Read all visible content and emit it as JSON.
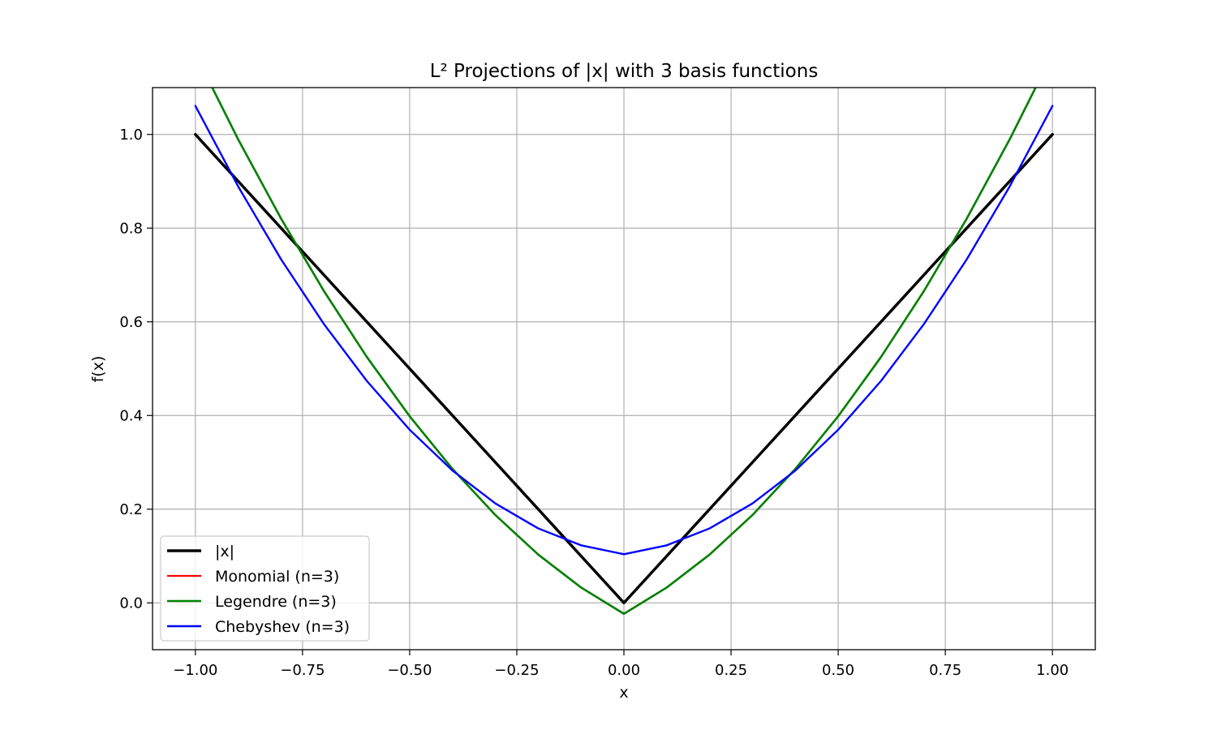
{
  "chart_data": {
    "type": "line",
    "title": "L² Projections of |x| with 3 basis functions",
    "xlabel": "x",
    "ylabel": "f(x)",
    "xlim": [
      -1.1,
      1.1
    ],
    "ylim": [
      -0.1,
      1.1
    ],
    "xticks": [
      -1.0,
      -0.75,
      -0.5,
      -0.25,
      0.0,
      0.25,
      0.5,
      0.75,
      1.0
    ],
    "xtick_labels": [
      "−1.00",
      "−0.75",
      "−0.50",
      "−0.25",
      "0.00",
      "0.25",
      "0.50",
      "0.75",
      "1.00"
    ],
    "yticks": [
      0.0,
      0.2,
      0.4,
      0.6,
      0.8,
      1.0
    ],
    "ytick_labels": [
      "0.0",
      "0.2",
      "0.4",
      "0.6",
      "0.8",
      "1.0"
    ],
    "grid": true,
    "legend_position": "lower-left",
    "x": [
      -1.0,
      -0.9,
      -0.8,
      -0.7,
      -0.6,
      -0.5,
      -0.4,
      -0.3,
      -0.2,
      -0.1,
      0.0,
      0.1,
      0.2,
      0.3,
      0.4,
      0.5,
      0.6,
      0.7,
      0.8,
      0.9,
      1.0
    ],
    "series": [
      {
        "name": "|x|",
        "color": "#000000",
        "values": [
          1.0,
          0.9,
          0.8,
          0.7,
          0.6,
          0.5,
          0.4,
          0.3,
          0.2,
          0.1,
          0.0,
          0.1,
          0.2,
          0.3,
          0.4,
          0.5,
          0.6,
          0.7,
          0.8,
          0.9,
          1.0
        ]
      },
      {
        "name": "Monomial (n=3)",
        "color": "#ff0000",
        "values": [
          1.1719,
          0.9891,
          0.8203,
          0.6656,
          0.525,
          0.3984,
          0.2859,
          0.1875,
          0.1031,
          0.0328,
          -0.0234,
          0.0328,
          0.1031,
          0.1875,
          0.2859,
          0.3984,
          0.525,
          0.6656,
          0.8203,
          0.9891,
          1.1719
        ]
      },
      {
        "name": "Legendre (n=3)",
        "color": "#008000",
        "values": [
          1.1719,
          0.9891,
          0.8203,
          0.6656,
          0.525,
          0.3984,
          0.2859,
          0.1875,
          0.1031,
          0.0328,
          -0.0234,
          0.0328,
          0.1031,
          0.1875,
          0.2859,
          0.3984,
          0.525,
          0.6656,
          0.8203,
          0.9891,
          1.1719
        ]
      },
      {
        "name": "Chebyshev (n=3)",
        "color": "#0000ff",
        "values": [
          1.061,
          0.8886,
          0.7333,
          0.5951,
          0.4738,
          0.3696,
          0.2824,
          0.2122,
          0.159,
          0.1229,
          0.1038,
          0.1229,
          0.159,
          0.2122,
          0.2824,
          0.3696,
          0.4738,
          0.5951,
          0.7333,
          0.8886,
          1.061
        ]
      }
    ]
  }
}
